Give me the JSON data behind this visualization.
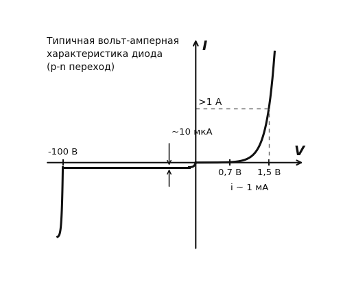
{
  "title_line1": "Типичная вольт-амперная",
  "title_line2": "характеристика диода",
  "title_line3": "(р-n переход)",
  "axis_label_I": "I",
  "axis_label_V": "V",
  "annotation_top": ">1 А",
  "annotation_mka": "~10 мкА",
  "annotation_v07": "0,7 В",
  "annotation_v15": "1,5 В",
  "annotation_imA": "i ~ 1 мА",
  "annotation_100V": "-100 В",
  "dashed_line_color": "#666666",
  "curve_color": "#111111",
  "axis_color": "#111111",
  "background_color": "#ffffff",
  "figsize": [
    5.0,
    4.15
  ],
  "dpi": 100,
  "xlim": [
    -115,
    85
  ],
  "ylim": [
    -78,
    110
  ]
}
